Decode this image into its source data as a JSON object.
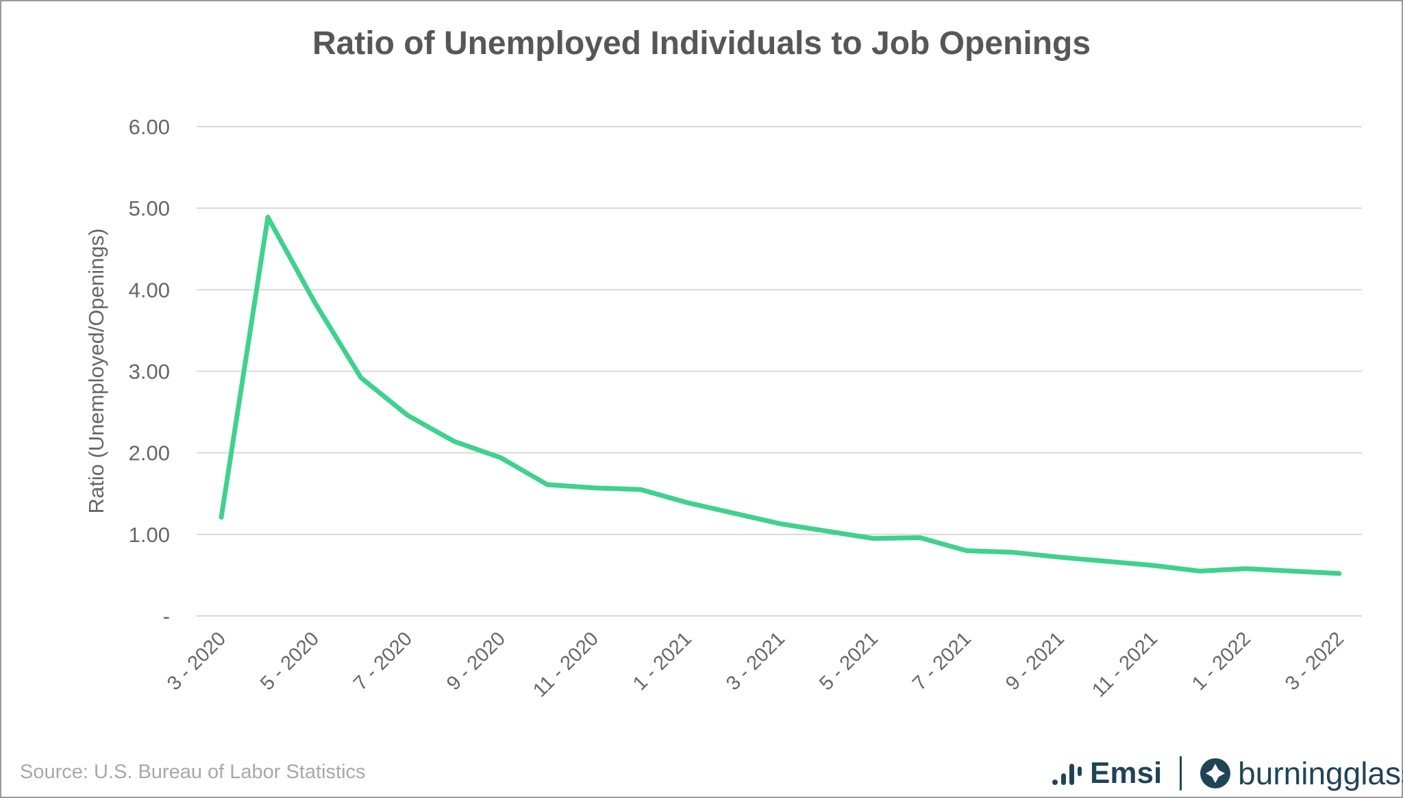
{
  "chart_data": {
    "type": "line",
    "title": "Ratio of Unemployed Individuals to Job Openings",
    "xlabel": "",
    "ylabel": "Ratio (Unemployed/Openings)",
    "ylim": [
      0,
      6
    ],
    "yticks": [
      "-",
      "1.00",
      "2.00",
      "3.00",
      "4.00",
      "5.00",
      "6.00"
    ],
    "grid": true,
    "x": [
      "3 - 2020",
      "4 - 2020",
      "5 - 2020",
      "6 - 2020",
      "7 - 2020",
      "8 - 2020",
      "9 - 2020",
      "10 - 2020",
      "11 - 2020",
      "12 - 2020",
      "1 - 2021",
      "2 - 2021",
      "3 - 2021",
      "4 - 2021",
      "5 - 2021",
      "6 - 2021",
      "7 - 2021",
      "8 - 2021",
      "9 - 2021",
      "10 - 2021",
      "11 - 2021",
      "12 - 2021",
      "1 - 2022",
      "2 - 2022",
      "3 - 2022"
    ],
    "xtick_labels": [
      "3 - 2020",
      "5 - 2020",
      "7 - 2020",
      "9 - 2020",
      "11 - 2020",
      "1 - 2021",
      "3 - 2021",
      "5 - 2021",
      "7 - 2021",
      "9 - 2021",
      "11 - 2021",
      "1 - 2022",
      "3 - 2022"
    ],
    "series": [
      {
        "name": "Ratio",
        "color": "#3fd18e",
        "values": [
          1.21,
          4.89,
          3.85,
          2.92,
          2.46,
          2.14,
          1.94,
          1.61,
          1.57,
          1.55,
          1.39,
          1.26,
          1.13,
          1.04,
          0.95,
          0.96,
          0.8,
          0.78,
          0.72,
          0.67,
          0.62,
          0.55,
          0.58,
          0.55,
          0.52
        ]
      }
    ]
  },
  "source": "Source:  U.S. Bureau of Labor Statistics",
  "logos": {
    "emsi": "Emsi",
    "burningglass": "burningglass"
  }
}
